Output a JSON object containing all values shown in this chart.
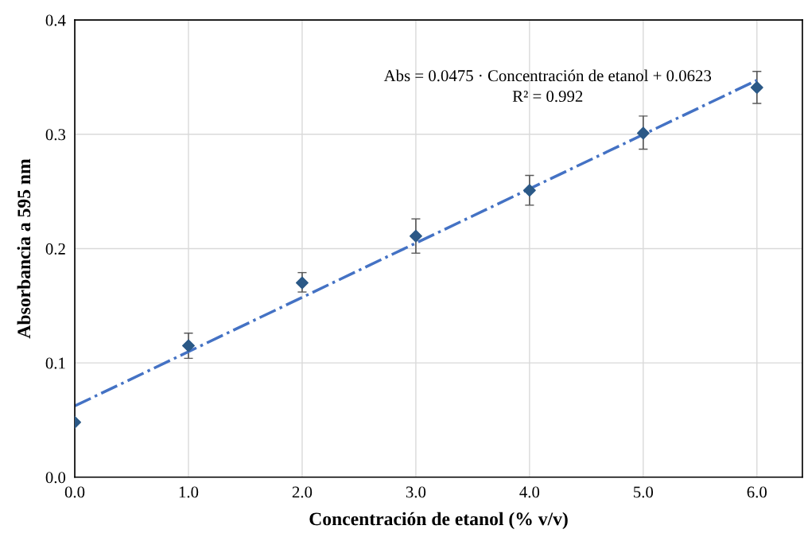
{
  "chart_data": {
    "type": "scatter",
    "xlabel": "Concentración de etanol (% v/v)",
    "ylabel": "Absorbancia a 595 nm",
    "annotations": [
      "Abs = 0.0475 · Concentración de etanol + 0.0623",
      "R² = 0.992"
    ],
    "series": [
      {
        "color": "#2b5987",
        "marker": "diamond",
        "x": [
          0,
          1,
          2,
          3,
          4,
          5,
          6
        ],
        "values": [
          0.048,
          0.115,
          0.17,
          0.211,
          0.251,
          0.301,
          0.341
        ],
        "errors": [
          null,
          [
            0.104,
            0.126
          ],
          [
            0.162,
            0.179
          ],
          [
            0.196,
            0.226
          ],
          [
            0.238,
            0.264
          ],
          [
            0.287,
            0.316
          ],
          [
            0.327,
            0.355
          ]
        ]
      },
      {
        "type": "line",
        "color": "#4472c4",
        "line_style": "dashed",
        "x": [
          0,
          6
        ],
        "values": [
          0.0623,
          0.3473
        ]
      }
    ],
    "xlim": [
      0,
      6.4
    ],
    "ylim": [
      0,
      0.4
    ],
    "xticks": [
      {
        "value": 0,
        "label": "0.0"
      },
      {
        "value": 1,
        "label": "1.0"
      },
      {
        "value": 2,
        "label": "2.0"
      },
      {
        "value": 3,
        "label": "3.0"
      },
      {
        "value": 4,
        "label": "4.0"
      },
      {
        "value": 5,
        "label": "5.0"
      },
      {
        "value": 6,
        "label": "6.0"
      }
    ],
    "yticks": [
      {
        "value": 0,
        "label": "0.0"
      },
      {
        "value": 0.1,
        "label": "0.1"
      },
      {
        "value": 0.2,
        "label": "0.2"
      },
      {
        "value": 0.3,
        "label": "0.3"
      },
      {
        "value": 0.4,
        "label": "0.4"
      }
    ],
    "grid": true
  }
}
